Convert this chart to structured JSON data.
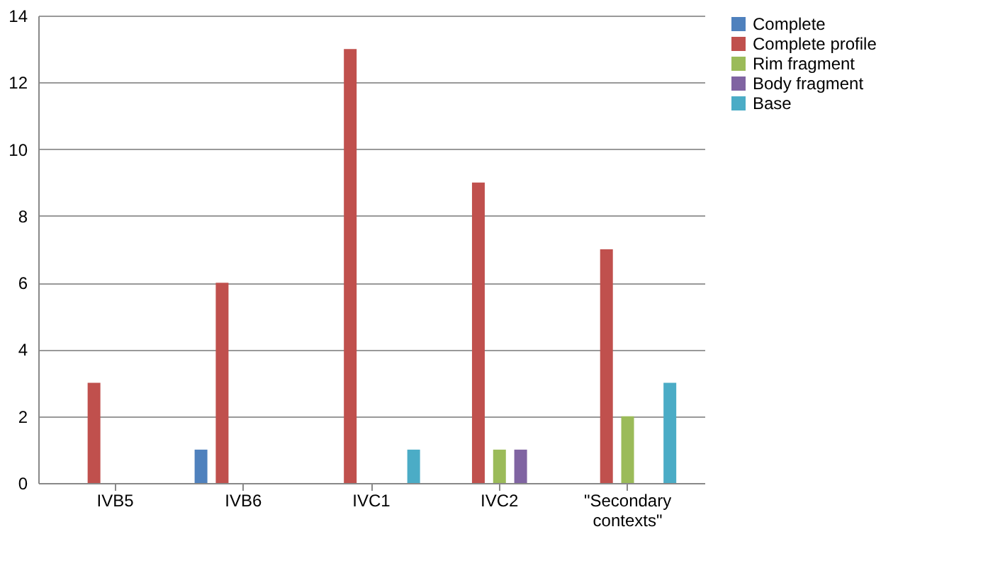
{
  "chart_data": {
    "type": "bar",
    "categories": [
      "IVB5",
      "IVB6",
      "IVC1",
      "IVC2",
      "\"Secondary contexts\""
    ],
    "series": [
      {
        "name": "Complete",
        "color": "#4f81bd",
        "values": [
          0,
          1,
          0,
          0,
          0
        ]
      },
      {
        "name": "Complete profile",
        "color": "#c0504d",
        "values": [
          3,
          6,
          13,
          9,
          7
        ]
      },
      {
        "name": "Rim fragment",
        "color": "#9bbb59",
        "values": [
          0,
          0,
          0,
          1,
          2
        ]
      },
      {
        "name": "Body fragment",
        "color": "#8064a2",
        "values": [
          0,
          0,
          0,
          1,
          0
        ]
      },
      {
        "name": "Base",
        "color": "#4bacc6",
        "values": [
          0,
          0,
          1,
          0,
          3
        ]
      }
    ],
    "ylim": [
      0,
      14
    ],
    "yticks": [
      0,
      2,
      4,
      6,
      8,
      10,
      12,
      14
    ],
    "grid": "y",
    "legend": "right"
  }
}
